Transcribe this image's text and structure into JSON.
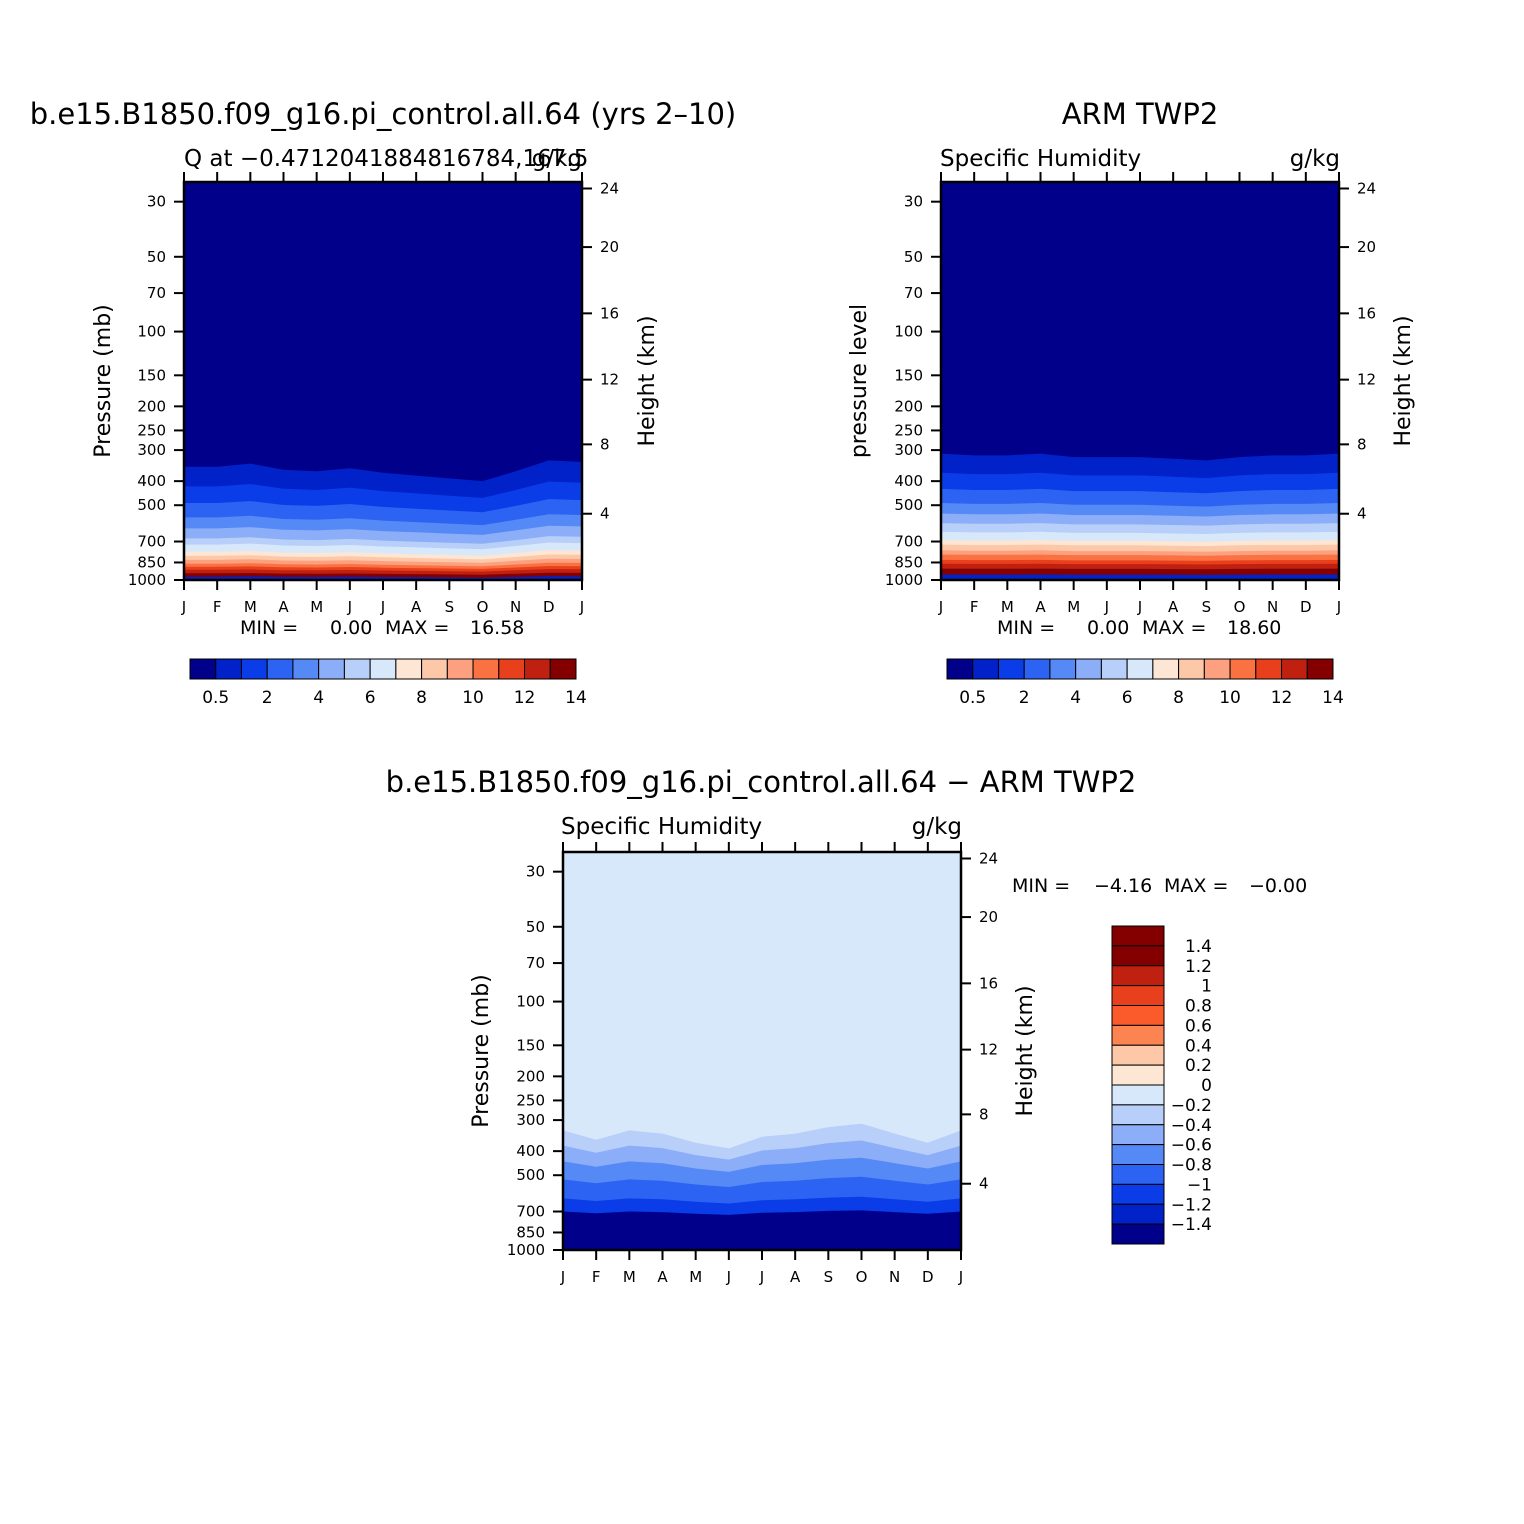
{
  "chart_data": [
    {
      "type": "heatmap",
      "title": "b.e15.B1850.f09_g16.pi_control.all.64 (yrs 2–10)",
      "left_subtitle": "Q at −0.4712041884816784,167.5",
      "right_subtitle": "g/kg",
      "ylabel": "Pressure (mb)",
      "ylabel_right": "Height (km)",
      "x_ticks": [
        "J",
        "F",
        "M",
        "A",
        "M",
        "J",
        "J",
        "A",
        "S",
        "O",
        "N",
        "D",
        "J"
      ],
      "y_ticks": [
        "30",
        "50",
        "70",
        "100",
        "150",
        "200",
        "250",
        "300",
        "400",
        "500",
        "700",
        "850",
        "1000"
      ],
      "y_ticks_right": [
        "24",
        "20",
        "16",
        "12",
        "8",
        "4"
      ],
      "ylim": [
        1000,
        25
      ],
      "stats": {
        "min_label": "MIN =",
        "min": "0.00",
        "max_label": "MAX =",
        "max": "16.58"
      },
      "colorbar": {
        "orientation": "horizontal",
        "labels": [
          "0.5",
          "2",
          "4",
          "6",
          "8",
          "10",
          "12",
          "14"
        ],
        "colors": [
          "#00008b",
          "#0022c8",
          "#0a3de8",
          "#2d63f2",
          "#5589f5",
          "#8cadf8",
          "#b8cff9",
          "#d8e8fb",
          "#fde6d4",
          "#fcc8a8",
          "#fca07f",
          "#fb7242",
          "#e8401d",
          "#c02010",
          "#840000"
        ]
      },
      "bands_pressure_top": [
        350,
        420,
        490,
        560,
        620,
        680,
        720,
        770,
        800,
        830,
        860,
        885,
        910,
        940,
        970
      ],
      "band_shift_by_month": [
        0,
        0,
        -10,
        10,
        15,
        5,
        20,
        30,
        40,
        50,
        15,
        -20,
        -15
      ]
    },
    {
      "type": "heatmap",
      "title": "ARM TWP2",
      "left_subtitle": "Specific Humidity",
      "right_subtitle": "g/kg",
      "ylabel": "pressure level",
      "ylabel_right": "Height (km)",
      "x_ticks": [
        "J",
        "F",
        "M",
        "A",
        "M",
        "J",
        "J",
        "A",
        "S",
        "O",
        "N",
        "D",
        "J"
      ],
      "y_ticks": [
        "30",
        "50",
        "70",
        "100",
        "150",
        "200",
        "250",
        "300",
        "400",
        "500",
        "700",
        "850",
        "1000"
      ],
      "y_ticks_right": [
        "24",
        "20",
        "16",
        "12",
        "8",
        "4"
      ],
      "ylim": [
        1000,
        25
      ],
      "stats": {
        "min_label": "MIN =",
        "min": "0.00",
        "max_label": "MAX =",
        "max": "18.60"
      },
      "colorbar": {
        "orientation": "horizontal",
        "labels": [
          "0.5",
          "2",
          "4",
          "6",
          "8",
          "10",
          "12",
          "14"
        ],
        "colors": [
          "#00008b",
          "#0022c8",
          "#0a3de8",
          "#2d63f2",
          "#5589f5",
          "#8cadf8",
          "#b8cff9",
          "#d8e8fb",
          "#fde6d4",
          "#fcc8a8",
          "#fca07f",
          "#fb7242",
          "#e8401d",
          "#c02010",
          "#840000"
        ]
      },
      "bands_pressure_top": [
        310,
        370,
        430,
        490,
        540,
        590,
        640,
        690,
        720,
        760,
        790,
        830,
        860,
        900,
        950
      ],
      "band_shift_by_month": [
        0,
        5,
        5,
        0,
        10,
        10,
        10,
        15,
        20,
        10,
        5,
        5,
        0
      ]
    },
    {
      "type": "heatmap",
      "title": "b.e15.B1850.f09_g16.pi_control.all.64 − ARM TWP2",
      "left_subtitle": "Specific Humidity",
      "right_subtitle": "g/kg",
      "ylabel": "Pressure (mb)",
      "ylabel_right": "Height (km)",
      "x_ticks": [
        "J",
        "F",
        "M",
        "A",
        "M",
        "J",
        "J",
        "A",
        "S",
        "O",
        "N",
        "D",
        "J"
      ],
      "y_ticks": [
        "30",
        "50",
        "70",
        "100",
        "150",
        "200",
        "250",
        "300",
        "400",
        "500",
        "700",
        "850",
        "1000"
      ],
      "y_ticks_right": [
        "24",
        "20",
        "16",
        "12",
        "8",
        "4"
      ],
      "ylim": [
        1000,
        25
      ],
      "stats": {
        "min_label": "MIN =",
        "min": "−4.16",
        "max_label": "MAX =",
        "max": "−0.00"
      },
      "colorbar": {
        "orientation": "vertical",
        "labels": [
          "1.4",
          "1.2",
          "1",
          "0.8",
          "0.6",
          "0.4",
          "0.2",
          "0",
          "−0.2",
          "−0.4",
          "−0.6",
          "−0.8",
          "−1",
          "−1.2",
          "−1.4"
        ],
        "colors": [
          "#840000",
          "#c02010",
          "#e8401d",
          "#fb5a2a",
          "#fc8450",
          "#fcc8a8",
          "#fde6d4",
          "#d8e8fb",
          "#b8cff9",
          "#8cadf8",
          "#5589f5",
          "#2d63f2",
          "#0a3de8",
          "#0022c8",
          "#00008b"
        ]
      },
      "bands_pressure_top": [
        330,
        380,
        440,
        520,
        620,
        700
      ],
      "band_shift_by_month": [
        0,
        30,
        0,
        10,
        40,
        60,
        20,
        10,
        -10,
        -20,
        10,
        40,
        0
      ]
    }
  ]
}
